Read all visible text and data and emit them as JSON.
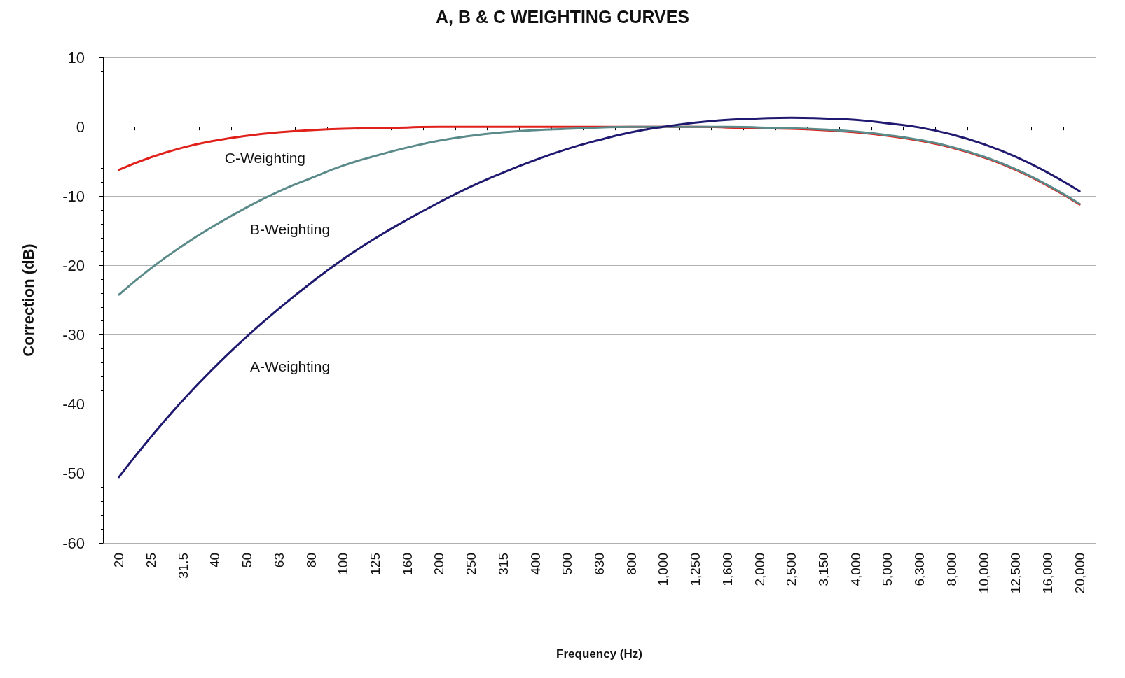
{
  "chart_data": {
    "type": "line",
    "title": "A, B & C WEIGHTING CURVES",
    "xlabel": "Frequency (Hz)",
    "ylabel": "Correction (dB)",
    "categories": [
      "20",
      "25",
      "31.5",
      "40",
      "50",
      "63",
      "80",
      "100",
      "125",
      "160",
      "200",
      "250",
      "315",
      "400",
      "500",
      "630",
      "800",
      "1,000",
      "1,250",
      "1,600",
      "2,000",
      "2,500",
      "3,150",
      "4,000",
      "5,000",
      "6,300",
      "8,000",
      "10,000",
      "12,500",
      "16,000",
      "20,000"
    ],
    "series": [
      {
        "name": "C-Weighting",
        "color": "#e0201b",
        "values": [
          -6.2,
          -4.4,
          -3.0,
          -2.0,
          -1.3,
          -0.8,
          -0.5,
          -0.3,
          -0.2,
          -0.1,
          0,
          0,
          0,
          0,
          0,
          0,
          0,
          0,
          0,
          -0.1,
          -0.2,
          -0.3,
          -0.5,
          -0.8,
          -1.3,
          -2.0,
          -3.0,
          -4.4,
          -6.2,
          -8.5,
          -11.2
        ]
      },
      {
        "name": "B-Weighting",
        "color": "#5a8a8a",
        "values": [
          -24.2,
          -20.4,
          -17.1,
          -14.2,
          -11.6,
          -9.3,
          -7.4,
          -5.6,
          -4.2,
          -3.0,
          -2.0,
          -1.3,
          -0.8,
          -0.5,
          -0.3,
          -0.1,
          0,
          0,
          0,
          0,
          -0.1,
          -0.2,
          -0.4,
          -0.7,
          -1.2,
          -1.9,
          -2.9,
          -4.3,
          -6.1,
          -8.4,
          -11.1
        ]
      },
      {
        "name": "A-Weighting",
        "color": "#1f1a70",
        "values": [
          -50.5,
          -44.7,
          -39.4,
          -34.6,
          -30.2,
          -26.2,
          -22.5,
          -19.1,
          -16.1,
          -13.4,
          -10.9,
          -8.6,
          -6.6,
          -4.8,
          -3.2,
          -1.9,
          -0.8,
          0,
          0.6,
          1.0,
          1.2,
          1.3,
          1.2,
          1.0,
          0.5,
          -0.1,
          -1.1,
          -2.5,
          -4.3,
          -6.6,
          -9.3
        ]
      }
    ],
    "ylim": [
      -60,
      10
    ],
    "yticks": [
      -60,
      -50,
      -40,
      -30,
      -20,
      -10,
      0,
      10
    ],
    "grid": "y",
    "marker": "none",
    "line_style": "solid"
  }
}
